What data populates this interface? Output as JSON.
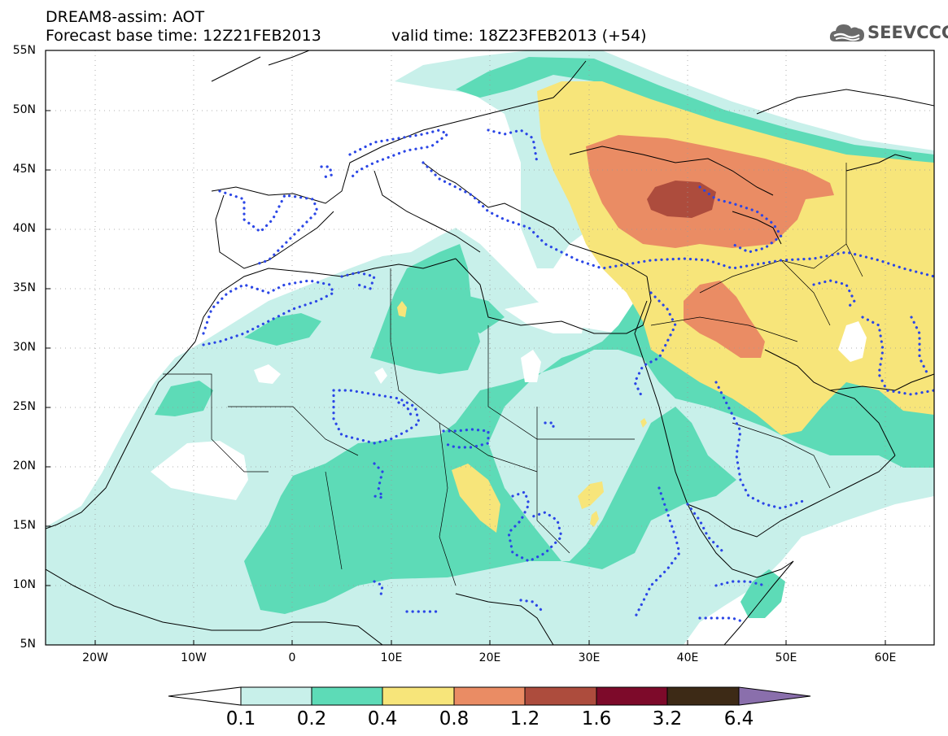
{
  "header": {
    "title_line1": "DREAM8-assim: AOT",
    "title_line2": "Forecast base time: 12Z21FEB2013",
    "valid_time": "valid time: 18Z23FEB2013 (+54)",
    "logo_text": "SEEVCCC",
    "logo_icon": "cloud-icon"
  },
  "map": {
    "lon_range": [
      -25,
      65
    ],
    "lat_range": [
      5,
      55
    ],
    "projection": "equirectangular",
    "grid": "dotted",
    "lat_labels": [
      "55N",
      "50N",
      "45N",
      "40N",
      "35N",
      "30N",
      "25N",
      "20N",
      "15N",
      "10N",
      "5N"
    ],
    "lon_labels": [
      "20W",
      "10W",
      "0",
      "10E",
      "20E",
      "30E",
      "40E",
      "50E",
      "60E"
    ]
  },
  "colorbar": {
    "labels": [
      "0.1",
      "0.2",
      "0.4",
      "0.8",
      "1.2",
      "1.6",
      "3.2",
      "6.4"
    ],
    "colors": [
      "#ffffff",
      "#c8f0ea",
      "#5ddbb7",
      "#f7e57a",
      "#ea8c64",
      "#ad4c3d",
      "#7d0a2a",
      "#3d2a16",
      "#8a6fac"
    ]
  },
  "legend_colors": {
    "aot_0_1": "#c8f0ea",
    "aot_0_2": "#5ddbb7",
    "aot_0_4": "#f7e57a",
    "aot_0_8": "#ea8c64",
    "aot_1_2": "#ad4c3d",
    "precip_contour": "#2b46e6"
  }
}
